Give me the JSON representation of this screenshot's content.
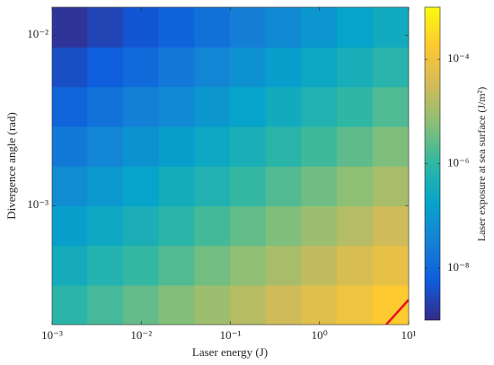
{
  "chart_data": {
    "type": "heatmap",
    "xlabel": "Laser energy (J)",
    "ylabel": "Divergence angle (rad)",
    "colorbar_label": "Laser exposure at sea surface (J/m²)",
    "xscale": "log",
    "yscale": "log",
    "cscale": "log",
    "xlim": [
      0.001,
      10
    ],
    "ylim": [
      0.0002,
      0.0146
    ],
    "clim": [
      1e-09,
      0.001
    ],
    "xticks": [
      {
        "value": 0.001,
        "label": "10⁻³"
      },
      {
        "value": 0.01,
        "label": "10⁻²"
      },
      {
        "value": 0.1,
        "label": "10⁻¹"
      },
      {
        "value": 1,
        "label": "10⁰"
      },
      {
        "value": 10,
        "label": "10¹"
      }
    ],
    "yticks": [
      {
        "value": 0.001,
        "label": "10⁻³"
      },
      {
        "value": 0.01,
        "label": "10⁻²"
      }
    ],
    "cticks": [
      {
        "value": 1e-08,
        "label": "10⁻⁸"
      },
      {
        "value": 1e-06,
        "label": "10⁻⁶"
      },
      {
        "value": 0.0001,
        "label": "10⁻⁴"
      }
    ],
    "colormap": [
      "#352a87",
      "#0f5cdd",
      "#1481d6",
      "#06a4ca",
      "#2eb7a4",
      "#87bf77",
      "#d1bb59",
      "#fec832",
      "#f9fb0e"
    ],
    "x": [
      0.00158,
      0.00398,
      0.01,
      0.0251,
      0.0631,
      0.158,
      0.398,
      1,
      2.51,
      6.31
    ],
    "y": [
      0.000261,
      0.000446,
      0.000762,
      0.0013,
      0.00223,
      0.00381,
      0.00652,
      0.0111
    ],
    "z": [
      [
        8.5e-07,
        1.55e-06,
        2.8e-06,
        5.1e-06,
        9.3e-06,
        1.7e-05,
        3.1e-05,
        5.6e-05,
        0.0001,
        0.00019
      ],
      [
        3.4e-07,
        6.2e-07,
        1.1e-06,
        2e-06,
        3.7e-06,
        6.8e-06,
        1.2e-05,
        2.2e-05,
        4.1e-05,
        7.4e-05
      ],
      [
        1.4e-07,
        2.5e-07,
        4.5e-07,
        8.2e-07,
        1.5e-06,
        2.7e-06,
        4.9e-06,
        9e-06,
        1.6e-05,
        3e-05
      ],
      [
        5.4e-08,
        9.8e-08,
        1.8e-07,
        3.3e-07,
        5.9e-07,
        1.1e-06,
        2e-06,
        3.6e-06,
        6.5e-06,
        1.2e-05
      ],
      [
        2.2e-08,
        3.9e-08,
        7.2e-08,
        1.3e-07,
        2.4e-07,
        4.3e-07,
        7.9e-07,
        1.4e-06,
        2.6e-06,
        4.7e-06
      ],
      [
        8.6e-09,
        1.6e-08,
        2.9e-08,
        5.2e-08,
        9.5e-08,
        1.7e-07,
        3.1e-07,
        5.7e-07,
        1e-06,
        1.9e-06
      ],
      [
        3.5e-09,
        6.3e-09,
        1.1e-08,
        2.1e-08,
        3.8e-08,
        6.9e-08,
        1.3e-07,
        2.3e-07,
        4.1e-07,
        7.6e-07
      ],
      [
        1.4e-09,
        2.5e-09,
        4.6e-09,
        8.3e-09,
        1.5e-08,
        2.8e-08,
        5e-08,
        9.1e-08,
        1.7e-07,
        3e-07
      ]
    ],
    "threshold_line": {
      "color": "#e8141c",
      "x": [
        5.6,
        10
      ],
      "y": [
        0.0002,
        0.00028
      ]
    }
  }
}
